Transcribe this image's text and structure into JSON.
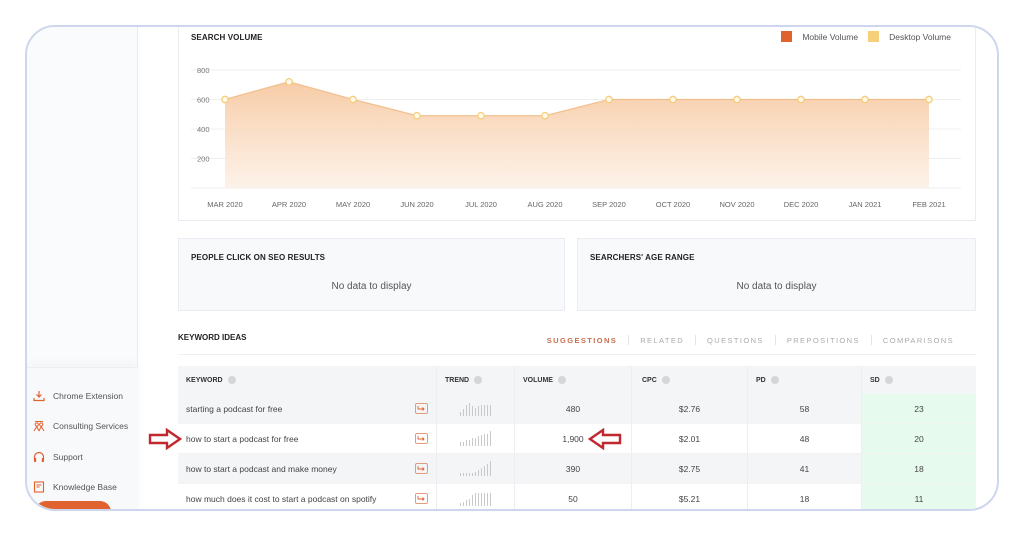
{
  "sidebar": {
    "items": [
      {
        "label": "Chrome Extension",
        "icon": "download-icon"
      },
      {
        "label": "Consulting Services",
        "icon": "people-icon"
      },
      {
        "label": "Support",
        "icon": "headphones-icon"
      },
      {
        "label": "Knowledge Base",
        "icon": "document-icon"
      }
    ],
    "accent": "#e0622f"
  },
  "search_volume": {
    "title": "SEARCH VOLUME",
    "legend": [
      {
        "label": "Mobile Volume",
        "color": "#e0622f"
      },
      {
        "label": "Desktop Volume",
        "color": "#f5cf7a"
      }
    ]
  },
  "chart_data": {
    "type": "area",
    "title": "SEARCH VOLUME",
    "categories": [
      "MAR 2020",
      "APR 2020",
      "MAY 2020",
      "JUN 2020",
      "JUL 2020",
      "AUG 2020",
      "SEP 2020",
      "OCT 2020",
      "NOV 2020",
      "DEC 2020",
      "JAN 2021",
      "FEB 2021"
    ],
    "series": [
      {
        "name": "Desktop Volume",
        "values": [
          600,
          720,
          600,
          490,
          490,
          490,
          600,
          600,
          600,
          600,
          600,
          600
        ]
      }
    ],
    "yticks": [
      200,
      400,
      600,
      800
    ],
    "ylim": [
      0,
      800
    ],
    "xlabel": "",
    "ylabel": "",
    "grid": true,
    "legend_position": "top-right",
    "legend": [
      "Mobile Volume",
      "Desktop Volume"
    ]
  },
  "panels": {
    "seo_clicks": {
      "title": "PEOPLE CLICK ON SEO RESULTS",
      "empty_text": "No data to display"
    },
    "age_range": {
      "title": "SEARCHERS' AGE RANGE",
      "empty_text": "No data to display"
    }
  },
  "keyword_ideas": {
    "title": "KEYWORD IDEAS",
    "tabs": [
      {
        "label": "SUGGESTIONS",
        "active": true
      },
      {
        "label": "RELATED",
        "active": false
      },
      {
        "label": "QUESTIONS",
        "active": false
      },
      {
        "label": "PREPOSITIONS",
        "active": false
      },
      {
        "label": "COMPARISONS",
        "active": false
      }
    ],
    "columns": [
      "KEYWORD",
      "TREND",
      "VOLUME",
      "CPC",
      "PD",
      "SD"
    ],
    "rows": [
      {
        "keyword": "starting a podcast for free",
        "volume": "480",
        "cpc": "$2.76",
        "pd": "58",
        "sd": "23",
        "trend": [
          3,
          5,
          8,
          10,
          7,
          6,
          7,
          8,
          8,
          8,
          8
        ]
      },
      {
        "keyword": "how to start a podcast for free",
        "volume": "1,900",
        "cpc": "$2.01",
        "pd": "48",
        "sd": "20",
        "trend": [
          3,
          3,
          4,
          4,
          6,
          6,
          7,
          8,
          9,
          9,
          11
        ]
      },
      {
        "keyword": "how to start a podcast and make money",
        "volume": "390",
        "cpc": "$2.75",
        "pd": "41",
        "sd": "18",
        "trend": [
          2,
          2,
          2,
          2,
          2,
          3,
          4,
          6,
          7,
          9,
          11
        ]
      },
      {
        "keyword": "how much does it cost to start a podcast on spotify",
        "volume": "50",
        "cpc": "$5.21",
        "pd": "18",
        "sd": "11",
        "trend": [
          2,
          3,
          4,
          5,
          8,
          10,
          10,
          10,
          10,
          10,
          10
        ]
      }
    ],
    "sd_highlight_color": "#e6fbee",
    "annotation_color": "#c0282d"
  }
}
